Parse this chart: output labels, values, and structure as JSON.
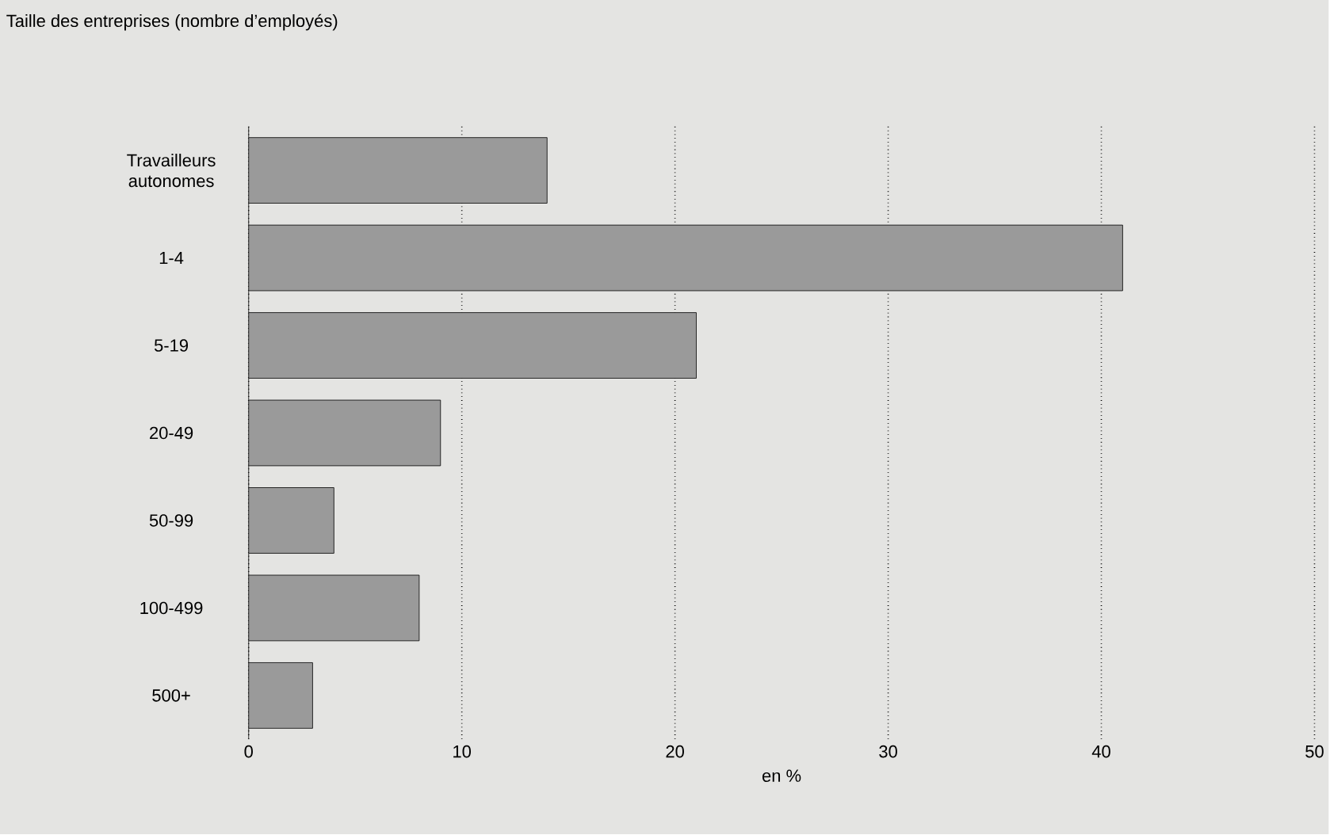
{
  "chart_data": {
    "type": "bar",
    "orientation": "horizontal",
    "title": "Taille des entreprises (nombre d’employés)",
    "xlabel": "en %",
    "categories": [
      "Travailleurs autonomes",
      "1-4",
      "5-19",
      "20-49",
      "50-99",
      "100-499",
      "500+"
    ],
    "values": [
      14,
      41,
      21,
      9,
      4,
      8,
      3
    ],
    "color": "#9a9a9a",
    "xlim": [
      0,
      50
    ],
    "xticks": [
      0,
      10,
      20,
      30,
      40,
      50
    ],
    "grid": "x"
  }
}
